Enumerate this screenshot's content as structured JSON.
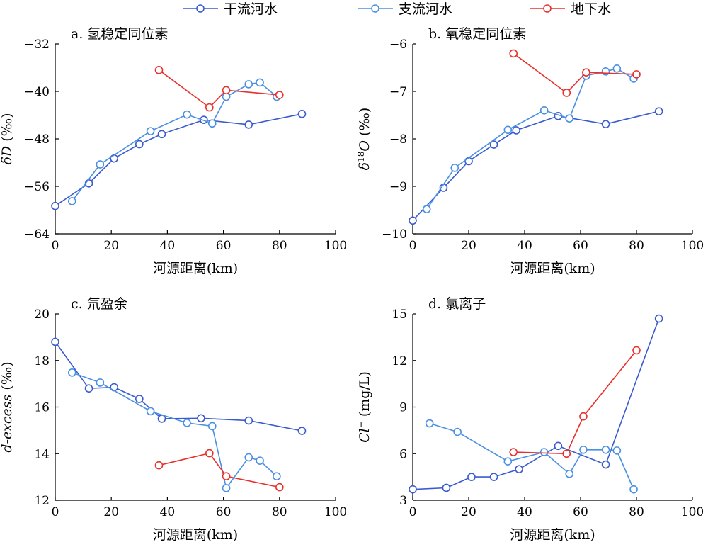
{
  "legend": [
    {
      "name": "干流河水",
      "color": "#3a5bcf"
    },
    {
      "name": "支流河水",
      "color": "#4a90e2"
    },
    {
      "name": "地下水",
      "color": "#e8302c"
    }
  ],
  "chart_data": [
    {
      "type": "line",
      "title": "a. 氢稳定同位素",
      "xlabel": "河源距离(km)",
      "ylabel_prefix": "δ",
      "ylabel_var": "D",
      "ylabel_unit": " (‰)",
      "xlim": [
        0,
        100
      ],
      "ylim": [
        -64,
        -32
      ],
      "xticks": [
        0,
        20,
        40,
        60,
        80,
        100
      ],
      "yticks": [
        -32,
        -40,
        -48,
        -56,
        -64
      ],
      "ytick_labels": [
        "−32",
        "−40",
        "−48",
        "−56",
        "−64"
      ],
      "series": [
        {
          "name": "干流河水",
          "color": "#3a5bcf",
          "x": [
            0,
            12,
            21,
            30,
            38,
            53,
            69,
            88
          ],
          "y": [
            -59.3,
            -55.5,
            -51.3,
            -48.9,
            -47.2,
            -44.8,
            -45.6,
            -43.8
          ]
        },
        {
          "name": "支流河水",
          "color": "#4a90e2",
          "x": [
            6,
            16,
            34,
            47,
            56,
            61,
            69,
            73,
            79
          ],
          "y": [
            -58.5,
            -52.3,
            -46.7,
            -43.9,
            -45.4,
            -40.9,
            -38.8,
            -38.5,
            -40.9
          ]
        },
        {
          "name": "地下水",
          "color": "#e8302c",
          "x": [
            37,
            55,
            61,
            80
          ],
          "y": [
            -36.4,
            -42.7,
            -39.8,
            -40.6
          ]
        }
      ]
    },
    {
      "type": "line",
      "title": "b. 氧稳定同位素",
      "xlabel": "河源距离(km)",
      "ylabel_prefix": "δ",
      "ylabel_sup": "18",
      "ylabel_var": "O",
      "ylabel_unit": " (‰)",
      "xlim": [
        0,
        100
      ],
      "ylim": [
        -10,
        -6
      ],
      "xticks": [
        0,
        20,
        40,
        60,
        80,
        100
      ],
      "yticks": [
        -6,
        -7,
        -8,
        -9,
        -10
      ],
      "ytick_labels": [
        "−6",
        "−7",
        "−8",
        "−9",
        "−10"
      ],
      "series": [
        {
          "name": "干流河水",
          "color": "#3a5bcf",
          "x": [
            0,
            11,
            20,
            29,
            37,
            52,
            69,
            88
          ],
          "y": [
            -9.72,
            -9.03,
            -8.47,
            -8.12,
            -7.82,
            -7.52,
            -7.69,
            -7.42
          ]
        },
        {
          "name": "支流河水",
          "color": "#4a90e2",
          "x": [
            5,
            15,
            34,
            47,
            56,
            62,
            69,
            73,
            79
          ],
          "y": [
            -9.48,
            -8.61,
            -7.81,
            -7.4,
            -7.57,
            -6.67,
            -6.58,
            -6.52,
            -6.73
          ]
        },
        {
          "name": "地下水",
          "color": "#e8302c",
          "x": [
            36,
            55,
            62,
            80
          ],
          "y": [
            -6.2,
            -7.03,
            -6.6,
            -6.64
          ]
        }
      ]
    },
    {
      "type": "line",
      "title": "c. 氘盈余",
      "xlabel": "河源距离(km)",
      "ylabel_prefix": "",
      "ylabel_var": "d-excess",
      "ylabel_unit": " (‰)",
      "xlim": [
        0,
        100
      ],
      "ylim": [
        12,
        20
      ],
      "xticks": [
        0,
        20,
        40,
        60,
        80,
        100
      ],
      "yticks": [
        12,
        14,
        16,
        18,
        20
      ],
      "ytick_labels": [
        "12",
        "14",
        "16",
        "18",
        "20"
      ],
      "series": [
        {
          "name": "干流河水",
          "color": "#3a5bcf",
          "x": [
            0,
            12,
            21,
            30,
            38,
            52,
            69,
            88
          ],
          "y": [
            18.8,
            16.8,
            16.85,
            16.35,
            15.5,
            15.52,
            15.42,
            14.98
          ]
        },
        {
          "name": "支流河水",
          "color": "#4a90e2",
          "x": [
            6,
            16,
            34,
            47,
            56,
            61,
            69,
            73,
            79
          ],
          "y": [
            17.48,
            17.05,
            15.82,
            15.32,
            15.18,
            12.52,
            13.84,
            13.7,
            13.03
          ]
        },
        {
          "name": "地下水",
          "color": "#e8302c",
          "x": [
            37,
            55,
            61,
            80
          ],
          "y": [
            13.5,
            14.02,
            13.03,
            12.56
          ]
        }
      ]
    },
    {
      "type": "line",
      "title": "d. 氯离子",
      "xlabel": "河源距离(km)",
      "ylabel_prefix": "",
      "ylabel_var": "Cl",
      "ylabel_sup": "−",
      "ylabel_unit": " (mg/L)",
      "xlim": [
        0,
        100
      ],
      "ylim": [
        3,
        15
      ],
      "xticks": [
        0,
        20,
        40,
        60,
        80,
        100
      ],
      "yticks": [
        3,
        6,
        9,
        12,
        15
      ],
      "ytick_labels": [
        "3",
        "6",
        "9",
        "12",
        "15"
      ],
      "series": [
        {
          "name": "干流河水",
          "color": "#3a5bcf",
          "x": [
            0,
            12,
            21,
            29,
            38,
            52,
            69,
            88
          ],
          "y": [
            3.7,
            3.8,
            4.5,
            4.5,
            5.0,
            6.5,
            5.3,
            14.7
          ]
        },
        {
          "name": "支流河水",
          "color": "#4a90e2",
          "x": [
            6,
            16,
            34,
            47,
            56,
            61,
            69,
            73,
            79
          ],
          "y": [
            7.95,
            7.4,
            5.5,
            6.1,
            4.7,
            6.25,
            6.25,
            6.2,
            3.7
          ]
        },
        {
          "name": "地下水",
          "color": "#e8302c",
          "x": [
            36,
            55,
            61,
            80
          ],
          "y": [
            6.1,
            6.0,
            8.4,
            12.65
          ]
        }
      ]
    }
  ]
}
